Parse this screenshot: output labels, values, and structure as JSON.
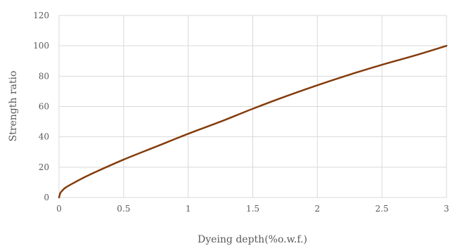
{
  "chart_data": {
    "type": "line",
    "title": "",
    "xlabel": "Dyeing depth(%o.w.f.)",
    "ylabel": "Strength ratio",
    "xlim": [
      0,
      3
    ],
    "ylim": [
      0,
      120
    ],
    "x_ticks": [
      0,
      0.5,
      1,
      1.5,
      2,
      2.5,
      3
    ],
    "x_tick_labels": [
      "0",
      "0.5",
      "1",
      "1.5",
      "2",
      "2.5",
      "3"
    ],
    "y_ticks": [
      0,
      20,
      40,
      60,
      80,
      100,
      120
    ],
    "y_tick_labels": [
      "0",
      "20",
      "40",
      "60",
      "80",
      "100",
      "120"
    ],
    "grid": true,
    "legend": "none",
    "series": [
      {
        "color": "#843C0C",
        "x": [
          0,
          0.01,
          0.03,
          0.05,
          0.1,
          0.2,
          0.3,
          0.5,
          0.75,
          1,
          1.25,
          1.5,
          1.75,
          2,
          2.25,
          2.5,
          2.75,
          3
        ],
        "y": [
          0,
          3,
          5,
          6.5,
          9,
          13.5,
          17.5,
          25,
          33.5,
          42,
          50,
          58.5,
          66.5,
          74,
          81,
          87.5,
          93.5,
          100
        ]
      }
    ]
  }
}
